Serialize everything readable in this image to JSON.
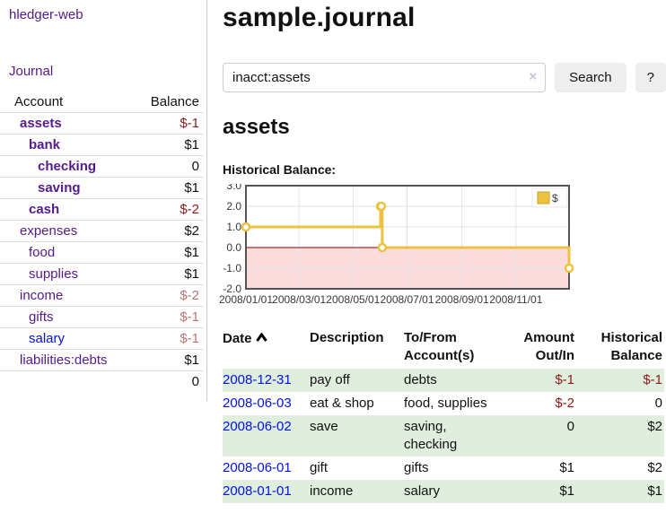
{
  "app": {
    "brand": "hledger-web",
    "nav_journal": "Journal"
  },
  "colors": {
    "link_purple": "#551a8b",
    "link_blue": "#0011ee",
    "negative_strong": "#8b1a1a",
    "negative_soft": "#bd7575",
    "row_stripe_green": "#dfeedd",
    "series_gold": "#edc240",
    "negative_region_pink": "#fbdcdc",
    "zero_line_red": "#8b0000"
  },
  "sidebar": {
    "header": {
      "account": "Account",
      "balance": "Balance"
    },
    "accounts": [
      {
        "name": "assets",
        "depth": 1,
        "bold": true,
        "link_color": "purple",
        "balance": "$-1",
        "balance_class": "neg-strong"
      },
      {
        "name": "bank",
        "depth": 2,
        "bold": true,
        "link_color": "purple",
        "balance": "$1",
        "balance_class": ""
      },
      {
        "name": "checking",
        "depth": 3,
        "bold": true,
        "link_color": "purple",
        "balance": "0",
        "balance_class": ""
      },
      {
        "name": "saving",
        "depth": 3,
        "bold": true,
        "link_color": "purple",
        "balance": "$1",
        "balance_class": ""
      },
      {
        "name": "cash",
        "depth": 2,
        "bold": true,
        "link_color": "purple",
        "balance": "$-2",
        "balance_class": "neg-strong"
      },
      {
        "name": "expenses",
        "depth": 1,
        "bold": false,
        "link_color": "purple",
        "balance": "$2",
        "balance_class": ""
      },
      {
        "name": "food",
        "depth": 2,
        "bold": false,
        "link_color": "purple",
        "balance": "$1",
        "balance_class": ""
      },
      {
        "name": "supplies",
        "depth": 2,
        "bold": false,
        "link_color": "purple",
        "balance": "$1",
        "balance_class": ""
      },
      {
        "name": "income",
        "depth": 1,
        "bold": false,
        "link_color": "purple",
        "balance": "$-2",
        "balance_class": "neg-soft"
      },
      {
        "name": "gifts",
        "depth": 2,
        "bold": false,
        "link_color": "purple",
        "balance": "$-1",
        "balance_class": "neg-soft"
      },
      {
        "name": "salary",
        "depth": 2,
        "bold": false,
        "link_color": "blue",
        "balance": "$-1",
        "balance_class": "neg-soft"
      },
      {
        "name": "liabilities:debts",
        "depth": 1,
        "bold": false,
        "link_color": "purple",
        "balance": "$1",
        "balance_class": ""
      }
    ],
    "total": "0"
  },
  "main": {
    "title": "sample.journal",
    "search": {
      "value": "inacct:assets",
      "clear_icon": "×",
      "search_button": "Search",
      "help_button": "?"
    },
    "account_heading": "assets",
    "chart_label": "Historical Balance:"
  },
  "chart_data": {
    "type": "line",
    "title": "Historical Balance:",
    "step": true,
    "xlim": [
      "2008-01-01",
      "2008-12-31"
    ],
    "ylim": [
      -2,
      3
    ],
    "y_ticks": [
      3.0,
      2.0,
      1.0,
      0.0,
      -1.0,
      -2.0
    ],
    "x_ticks": [
      "2008/01/01",
      "2008/03/01",
      "2008/05/01",
      "2008/07/01",
      "2008/09/01",
      "2008/11/01"
    ],
    "grid": true,
    "negative_fill": "#fbdcdc",
    "zero_line_color": "#8b0000",
    "legend": {
      "label": "$",
      "position": "top-right"
    },
    "series": [
      {
        "name": "$",
        "color": "#edc240",
        "points": [
          {
            "x": "2008-01-01",
            "y": 1
          },
          {
            "x": "2008-06-01",
            "y": 2
          },
          {
            "x": "2008-06-02",
            "y": 2
          },
          {
            "x": "2008-06-03",
            "y": 0
          },
          {
            "x": "2008-12-31",
            "y": -1
          }
        ]
      }
    ]
  },
  "register": {
    "columns": [
      "Date",
      "Description",
      "To/From Account(s)",
      "Amount Out/In",
      "Historical Balance"
    ],
    "rows": [
      {
        "date": "2008-12-31",
        "description": "pay off",
        "accounts": "debts",
        "amount": "$-1",
        "amount_negative": true,
        "balance": "$-1",
        "balance_negative": true
      },
      {
        "date": "2008-06-03",
        "description": "eat & shop",
        "accounts": "food, supplies",
        "amount": "$-2",
        "amount_negative": true,
        "balance": "0",
        "balance_negative": false
      },
      {
        "date": "2008-06-02",
        "description": "save",
        "accounts": "saving, checking",
        "amount": "0",
        "amount_negative": false,
        "balance": "$2",
        "balance_negative": false
      },
      {
        "date": "2008-06-01",
        "description": "gift",
        "accounts": "gifts",
        "amount": "$1",
        "amount_negative": false,
        "balance": "$2",
        "balance_negative": false
      },
      {
        "date": "2008-01-01",
        "description": "income",
        "accounts": "salary",
        "amount": "$1",
        "amount_negative": false,
        "balance": "$1",
        "balance_negative": false
      }
    ]
  }
}
